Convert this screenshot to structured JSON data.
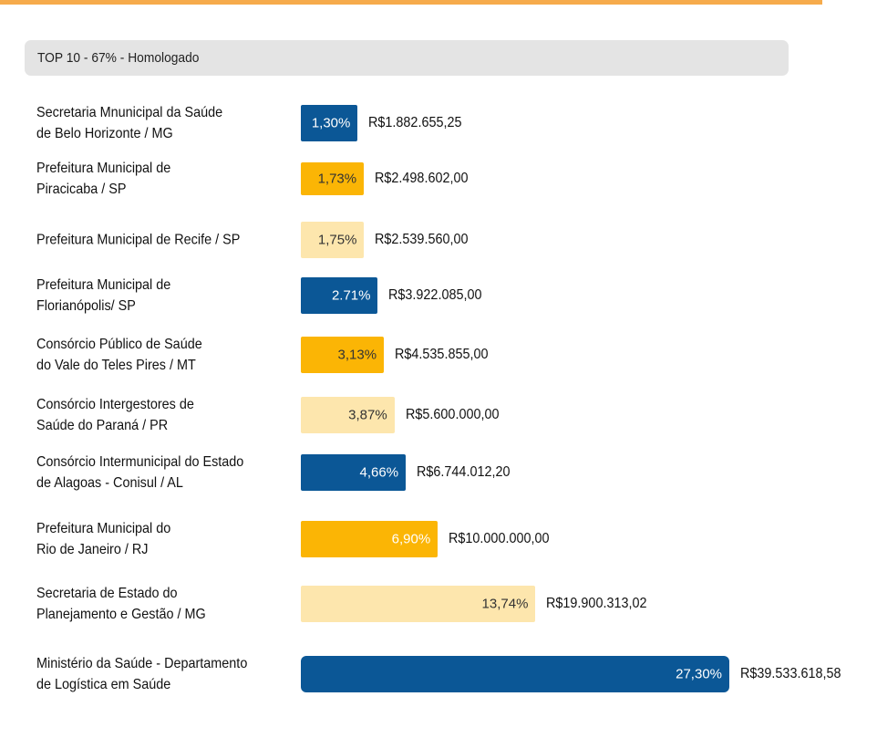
{
  "header": {
    "title": "TOP 10 - 67%  - Homologado"
  },
  "colors": {
    "blue": "#0b5796",
    "orange": "#fbb505",
    "cream": "#fde6ad",
    "rule": "#f6ab4c"
  },
  "chart_data": {
    "type": "bar",
    "orientation": "horizontal",
    "title": "",
    "categories": [
      [
        "Secretaria Mnunicipal da Saúde",
        "de Belo Horizonte / MG"
      ],
      [
        "Prefeitura Municipal de",
        "Piracicaba / SP"
      ],
      [
        "Prefeitura Municipal de Recife / SP"
      ],
      [
        "Prefeitura Municipal de",
        "Florianópolis/ SP"
      ],
      [
        "Consórcio Público de Saúde",
        "do Vale do Teles Pires / MT"
      ],
      [
        "Consórcio Intergestores de",
        "Saúde do Paraná / PR"
      ],
      [
        "Consórcio Intermunicipal do Estado",
        "de Alagoas - Conisul / AL"
      ],
      [
        "Prefeitura Municipal do",
        "Rio de Janeiro / RJ"
      ],
      [
        "Secretaria de Estado do",
        "Planejamento e Gestão / MG"
      ],
      [
        "Ministério da Saúde - Departamento",
        "de Logística em Saúde"
      ]
    ],
    "series": [
      {
        "values": [
          1.3,
          1.73,
          1.75,
          2.71,
          3.13,
          3.87,
          4.66,
          6.9,
          13.74,
          27.3
        ],
        "percent_labels": [
          "1,30%",
          "1,73%",
          "1,75%",
          "2.71%",
          "3,13%",
          "3,87%",
          "4,66%",
          "6,90%",
          "13,74%",
          "27,30%"
        ],
        "amount_labels": [
          "R$1.882.655,25",
          "R$2.498.602,00",
          "R$2.539.560,00",
          "R$3.922.085,00",
          "R$4.535.855,00",
          "R$5.600.000,00",
          "R$6.744.012,20",
          "R$10.000.000,00",
          "R$19.900.313,02",
          "R$39.533.618,58"
        ],
        "amounts": [
          1882655.25,
          2498602.0,
          2539560.0,
          3922085.0,
          4535855.0,
          5600000.0,
          6744012.2,
          10000000.0,
          19900313.02,
          39533618.58
        ],
        "bar_colors": [
          "blue",
          "orange",
          "cream",
          "blue",
          "orange",
          "cream",
          "blue",
          "orange",
          "cream",
          "blue"
        ]
      }
    ]
  }
}
